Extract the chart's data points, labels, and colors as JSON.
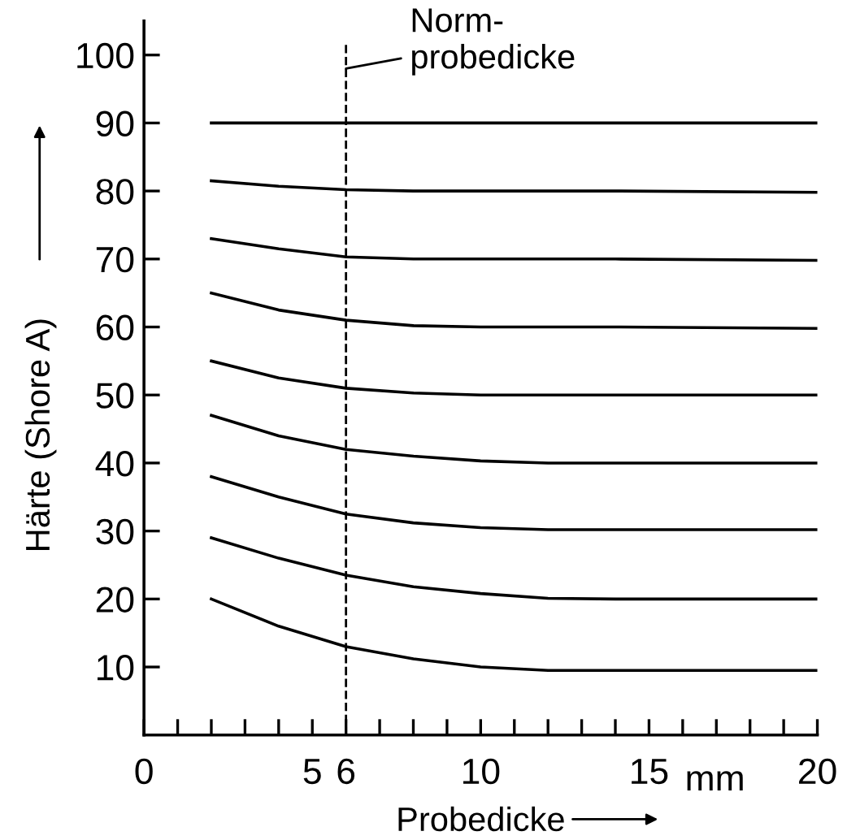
{
  "chart_data": {
    "type": "line",
    "xlabel": "Probedicke",
    "ylabel": "Härte (Shore A)",
    "xlim": [
      0,
      20
    ],
    "ylim": [
      0,
      105
    ],
    "xticks": [
      0,
      {
        "value": 1,
        "label": null
      },
      {
        "value": 2,
        "label": null
      },
      {
        "value": 3,
        "label": null
      },
      {
        "value": 4,
        "label": null
      },
      5,
      6,
      {
        "value": 7,
        "label": null
      },
      {
        "value": 8,
        "label": null
      },
      {
        "value": 9,
        "label": null
      },
      10,
      {
        "value": 11,
        "label": null
      },
      {
        "value": 12,
        "label": null
      },
      {
        "value": 13,
        "label": null
      },
      {
        "value": 14,
        "label": null
      },
      15,
      {
        "value": 16,
        "label": null
      },
      {
        "value": 17,
        "label": null
      },
      {
        "value": 18,
        "label": null
      },
      {
        "value": 19,
        "label": null
      },
      20
    ],
    "yticks": [
      10,
      20,
      30,
      40,
      50,
      60,
      70,
      80,
      90,
      100
    ],
    "x": [
      2,
      4,
      6,
      8,
      10,
      12,
      14,
      20
    ],
    "series": [
      {
        "color": "#000000",
        "values": [
          90,
          90,
          90,
          90,
          90,
          90,
          90,
          90
        ]
      },
      {
        "color": "#000000",
        "values": [
          81.5,
          80.7,
          80.2,
          80,
          80,
          80,
          80,
          79.8
        ]
      },
      {
        "color": "#000000",
        "values": [
          73,
          71.5,
          70.3,
          70,
          70,
          70,
          70,
          69.8
        ]
      },
      {
        "color": "#000000",
        "values": [
          65,
          62.5,
          61,
          60.2,
          60,
          60,
          60,
          59.8
        ]
      },
      {
        "color": "#000000",
        "values": [
          55,
          52.5,
          51,
          50.3,
          50,
          50,
          50,
          50
        ]
      },
      {
        "color": "#000000",
        "values": [
          47,
          44,
          42,
          41,
          40.3,
          40,
          40,
          40
        ]
      },
      {
        "color": "#000000",
        "values": [
          38,
          35,
          32.5,
          31.2,
          30.5,
          30.2,
          30.2,
          30.2
        ]
      },
      {
        "color": "#000000",
        "values": [
          29,
          26,
          23.5,
          21.8,
          20.8,
          20.1,
          20,
          20
        ]
      },
      {
        "color": "#000000",
        "values": [
          20,
          16,
          13,
          11.2,
          10,
          9.5,
          9.5,
          9.5
        ]
      }
    ],
    "ref_lines": [
      {
        "axis": "x",
        "value": 6,
        "label": "Norm-\nprobedicke",
        "color": "#000000",
        "line_style": "dashed"
      }
    ],
    "annotations": [
      "mm"
    ],
    "marker": "none",
    "line_style": "solid",
    "grid": false,
    "legend": false
  }
}
